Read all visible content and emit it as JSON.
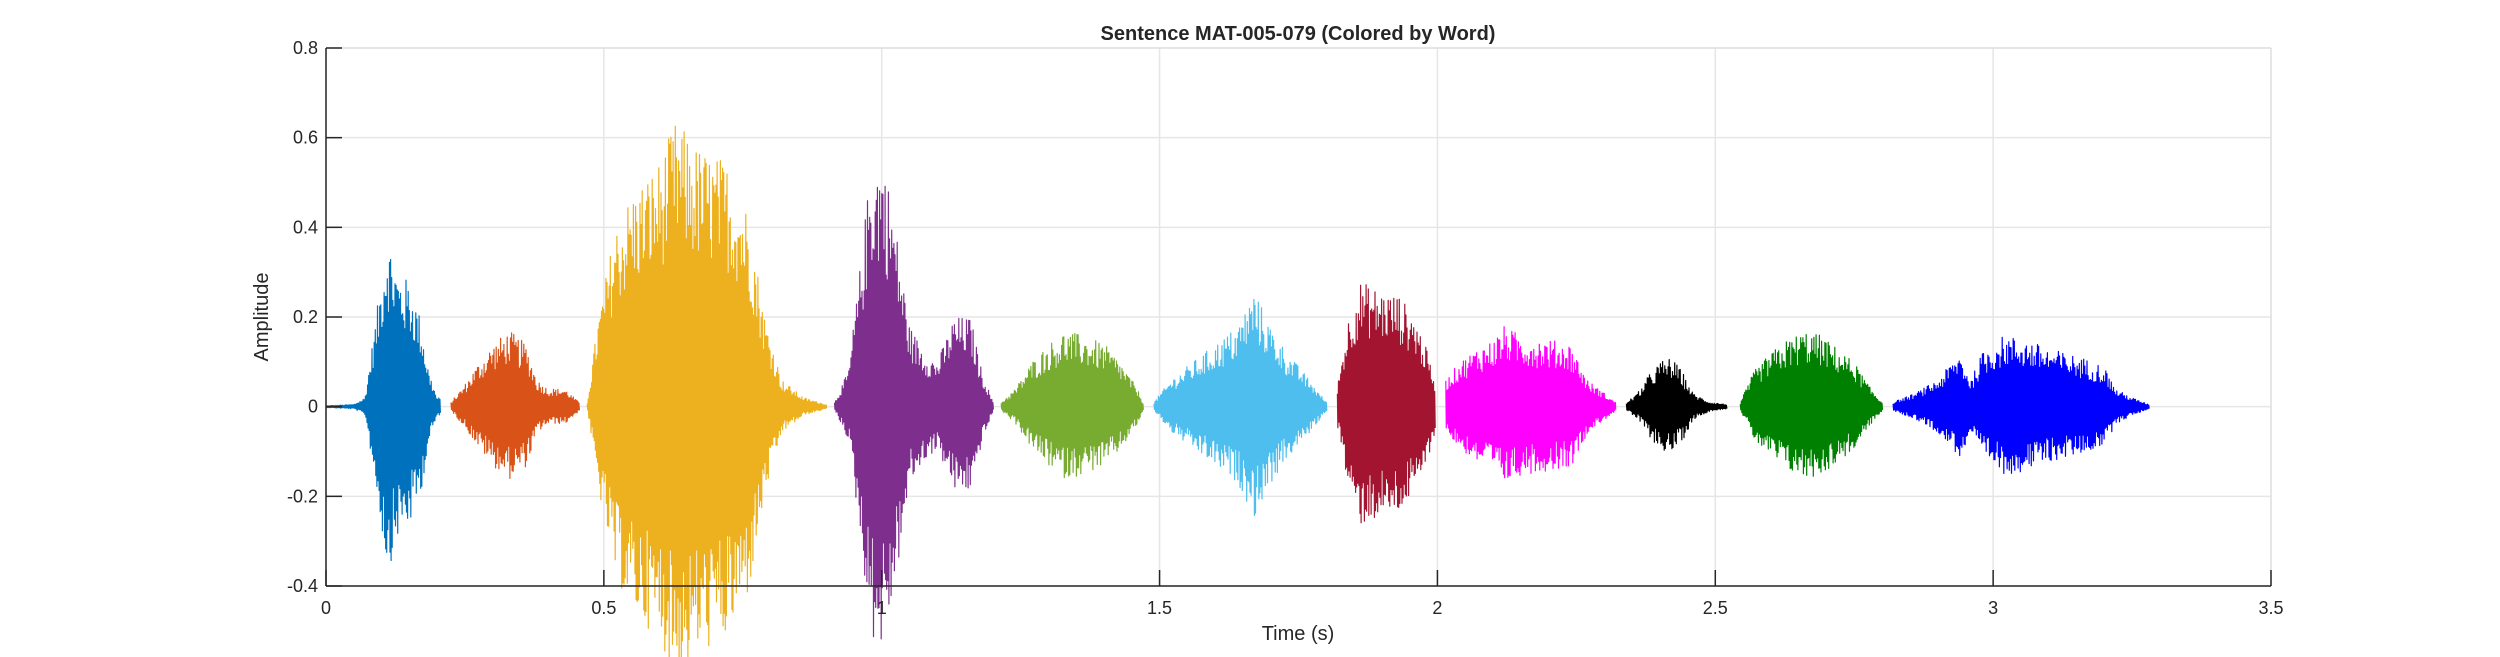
{
  "chart_data": {
    "type": "line",
    "title": "Sentence MAT-005-079 (Colored by Word)",
    "xlabel": "Time (s)",
    "ylabel": "Amplitude",
    "xlim": [
      0,
      3.5
    ],
    "ylim": [
      -0.4,
      0.8
    ],
    "xticks": [
      0,
      0.5,
      1,
      1.5,
      2,
      2.5,
      3,
      3.5
    ],
    "xtick_labels": [
      "0",
      "0.5",
      "1",
      "1.5",
      "2",
      "2.5",
      "3",
      "3.5"
    ],
    "yticks": [
      -0.4,
      -0.2,
      0,
      0.2,
      0.4,
      0.6,
      0.8
    ],
    "ytick_labels": [
      "-0.4",
      "-0.2",
      "0",
      "0.2",
      "0.4",
      "0.6",
      "0.8"
    ],
    "grid": true,
    "series": [
      {
        "color": "#0072BD",
        "start": 0.0,
        "end": 0.205,
        "envelope": [
          [
            0.0,
            0.002
          ],
          [
            0.05,
            0.005
          ],
          [
            0.07,
            0.02
          ],
          [
            0.09,
            0.2
          ],
          [
            0.11,
            0.39
          ],
          [
            0.13,
            0.3
          ],
          [
            0.15,
            0.28
          ],
          [
            0.17,
            0.2
          ],
          [
            0.185,
            0.08
          ],
          [
            0.2,
            0.02
          ]
        ]
      },
      {
        "color": "#D95319",
        "start": 0.225,
        "end": 0.455,
        "envelope": [
          [
            0.225,
            0.01
          ],
          [
            0.25,
            0.05
          ],
          [
            0.27,
            0.09
          ],
          [
            0.3,
            0.14
          ],
          [
            0.33,
            0.17
          ],
          [
            0.36,
            0.14
          ],
          [
            0.38,
            0.06
          ],
          [
            0.4,
            0.04
          ],
          [
            0.43,
            0.04
          ],
          [
            0.455,
            0.01
          ]
        ]
      },
      {
        "color": "#EDB120",
        "start": 0.47,
        "end": 0.9,
        "envelope": [
          [
            0.47,
            0.01
          ],
          [
            0.49,
            0.2
          ],
          [
            0.52,
            0.4
          ],
          [
            0.55,
            0.48
          ],
          [
            0.6,
            0.55
          ],
          [
            0.63,
            0.64
          ],
          [
            0.67,
            0.58
          ],
          [
            0.72,
            0.55
          ],
          [
            0.76,
            0.44
          ],
          [
            0.79,
            0.2
          ],
          [
            0.82,
            0.06
          ],
          [
            0.86,
            0.02
          ],
          [
            0.9,
            0.005
          ]
        ]
      },
      {
        "color": "#7E2F8E",
        "start": 0.915,
        "end": 1.2,
        "envelope": [
          [
            0.915,
            0.01
          ],
          [
            0.94,
            0.08
          ],
          [
            0.96,
            0.3
          ],
          [
            0.98,
            0.54
          ],
          [
            1.0,
            0.57
          ],
          [
            1.02,
            0.45
          ],
          [
            1.05,
            0.18
          ],
          [
            1.08,
            0.12
          ],
          [
            1.1,
            0.1
          ],
          [
            1.13,
            0.2
          ],
          [
            1.16,
            0.2
          ],
          [
            1.18,
            0.08
          ],
          [
            1.2,
            0.01
          ]
        ]
      },
      {
        "color": "#77AC30",
        "start": 1.215,
        "end": 1.47,
        "envelope": [
          [
            1.215,
            0.01
          ],
          [
            1.24,
            0.04
          ],
          [
            1.27,
            0.1
          ],
          [
            1.3,
            0.14
          ],
          [
            1.33,
            0.17
          ],
          [
            1.36,
            0.16
          ],
          [
            1.4,
            0.14
          ],
          [
            1.43,
            0.1
          ],
          [
            1.46,
            0.04
          ],
          [
            1.47,
            0.01
          ]
        ]
      },
      {
        "color": "#4DBEEE",
        "start": 1.49,
        "end": 1.8,
        "envelope": [
          [
            1.49,
            0.01
          ],
          [
            1.52,
            0.06
          ],
          [
            1.56,
            0.1
          ],
          [
            1.6,
            0.14
          ],
          [
            1.64,
            0.18
          ],
          [
            1.67,
            0.26
          ],
          [
            1.7,
            0.18
          ],
          [
            1.73,
            0.12
          ],
          [
            1.77,
            0.06
          ],
          [
            1.8,
            0.01
          ]
        ]
      },
      {
        "color": "#A2142F",
        "start": 1.82,
        "end": 1.995,
        "envelope": [
          [
            1.82,
            0.05
          ],
          [
            1.84,
            0.2
          ],
          [
            1.86,
            0.28
          ],
          [
            1.88,
            0.27
          ],
          [
            1.9,
            0.26
          ],
          [
            1.93,
            0.25
          ],
          [
            1.96,
            0.2
          ],
          [
            1.98,
            0.13
          ],
          [
            1.995,
            0.06
          ]
        ]
      },
      {
        "color": "#FF00FF",
        "start": 2.015,
        "end": 2.32,
        "envelope": [
          [
            2.015,
            0.06
          ],
          [
            2.04,
            0.1
          ],
          [
            2.07,
            0.13
          ],
          [
            2.1,
            0.15
          ],
          [
            2.12,
            0.18
          ],
          [
            2.15,
            0.16
          ],
          [
            2.2,
            0.15
          ],
          [
            2.24,
            0.14
          ],
          [
            2.27,
            0.06
          ],
          [
            2.3,
            0.03
          ],
          [
            2.32,
            0.01
          ]
        ]
      },
      {
        "color": "#000000",
        "start": 2.34,
        "end": 2.52,
        "envelope": [
          [
            2.34,
            0.01
          ],
          [
            2.36,
            0.03
          ],
          [
            2.38,
            0.07
          ],
          [
            2.4,
            0.1
          ],
          [
            2.42,
            0.11
          ],
          [
            2.44,
            0.08
          ],
          [
            2.46,
            0.03
          ],
          [
            2.49,
            0.01
          ],
          [
            2.52,
            0.005
          ]
        ]
      },
      {
        "color": "#008000",
        "start": 2.545,
        "end": 2.8,
        "envelope": [
          [
            2.545,
            0.01
          ],
          [
            2.57,
            0.08
          ],
          [
            2.6,
            0.12
          ],
          [
            2.63,
            0.15
          ],
          [
            2.66,
            0.17
          ],
          [
            2.69,
            0.16
          ],
          [
            2.72,
            0.13
          ],
          [
            2.75,
            0.1
          ],
          [
            2.78,
            0.04
          ],
          [
            2.8,
            0.01
          ]
        ]
      },
      {
        "color": "#0000FF",
        "start": 2.82,
        "end": 3.28,
        "envelope": [
          [
            2.82,
            0.01
          ],
          [
            2.86,
            0.03
          ],
          [
            2.9,
            0.06
          ],
          [
            2.94,
            0.12
          ],
          [
            2.96,
            0.06
          ],
          [
            2.98,
            0.12
          ],
          [
            3.02,
            0.16
          ],
          [
            3.06,
            0.15
          ],
          [
            3.1,
            0.13
          ],
          [
            3.16,
            0.11
          ],
          [
            3.2,
            0.09
          ],
          [
            3.22,
            0.04
          ],
          [
            3.25,
            0.02
          ],
          [
            3.28,
            0.005
          ]
        ]
      }
    ]
  }
}
